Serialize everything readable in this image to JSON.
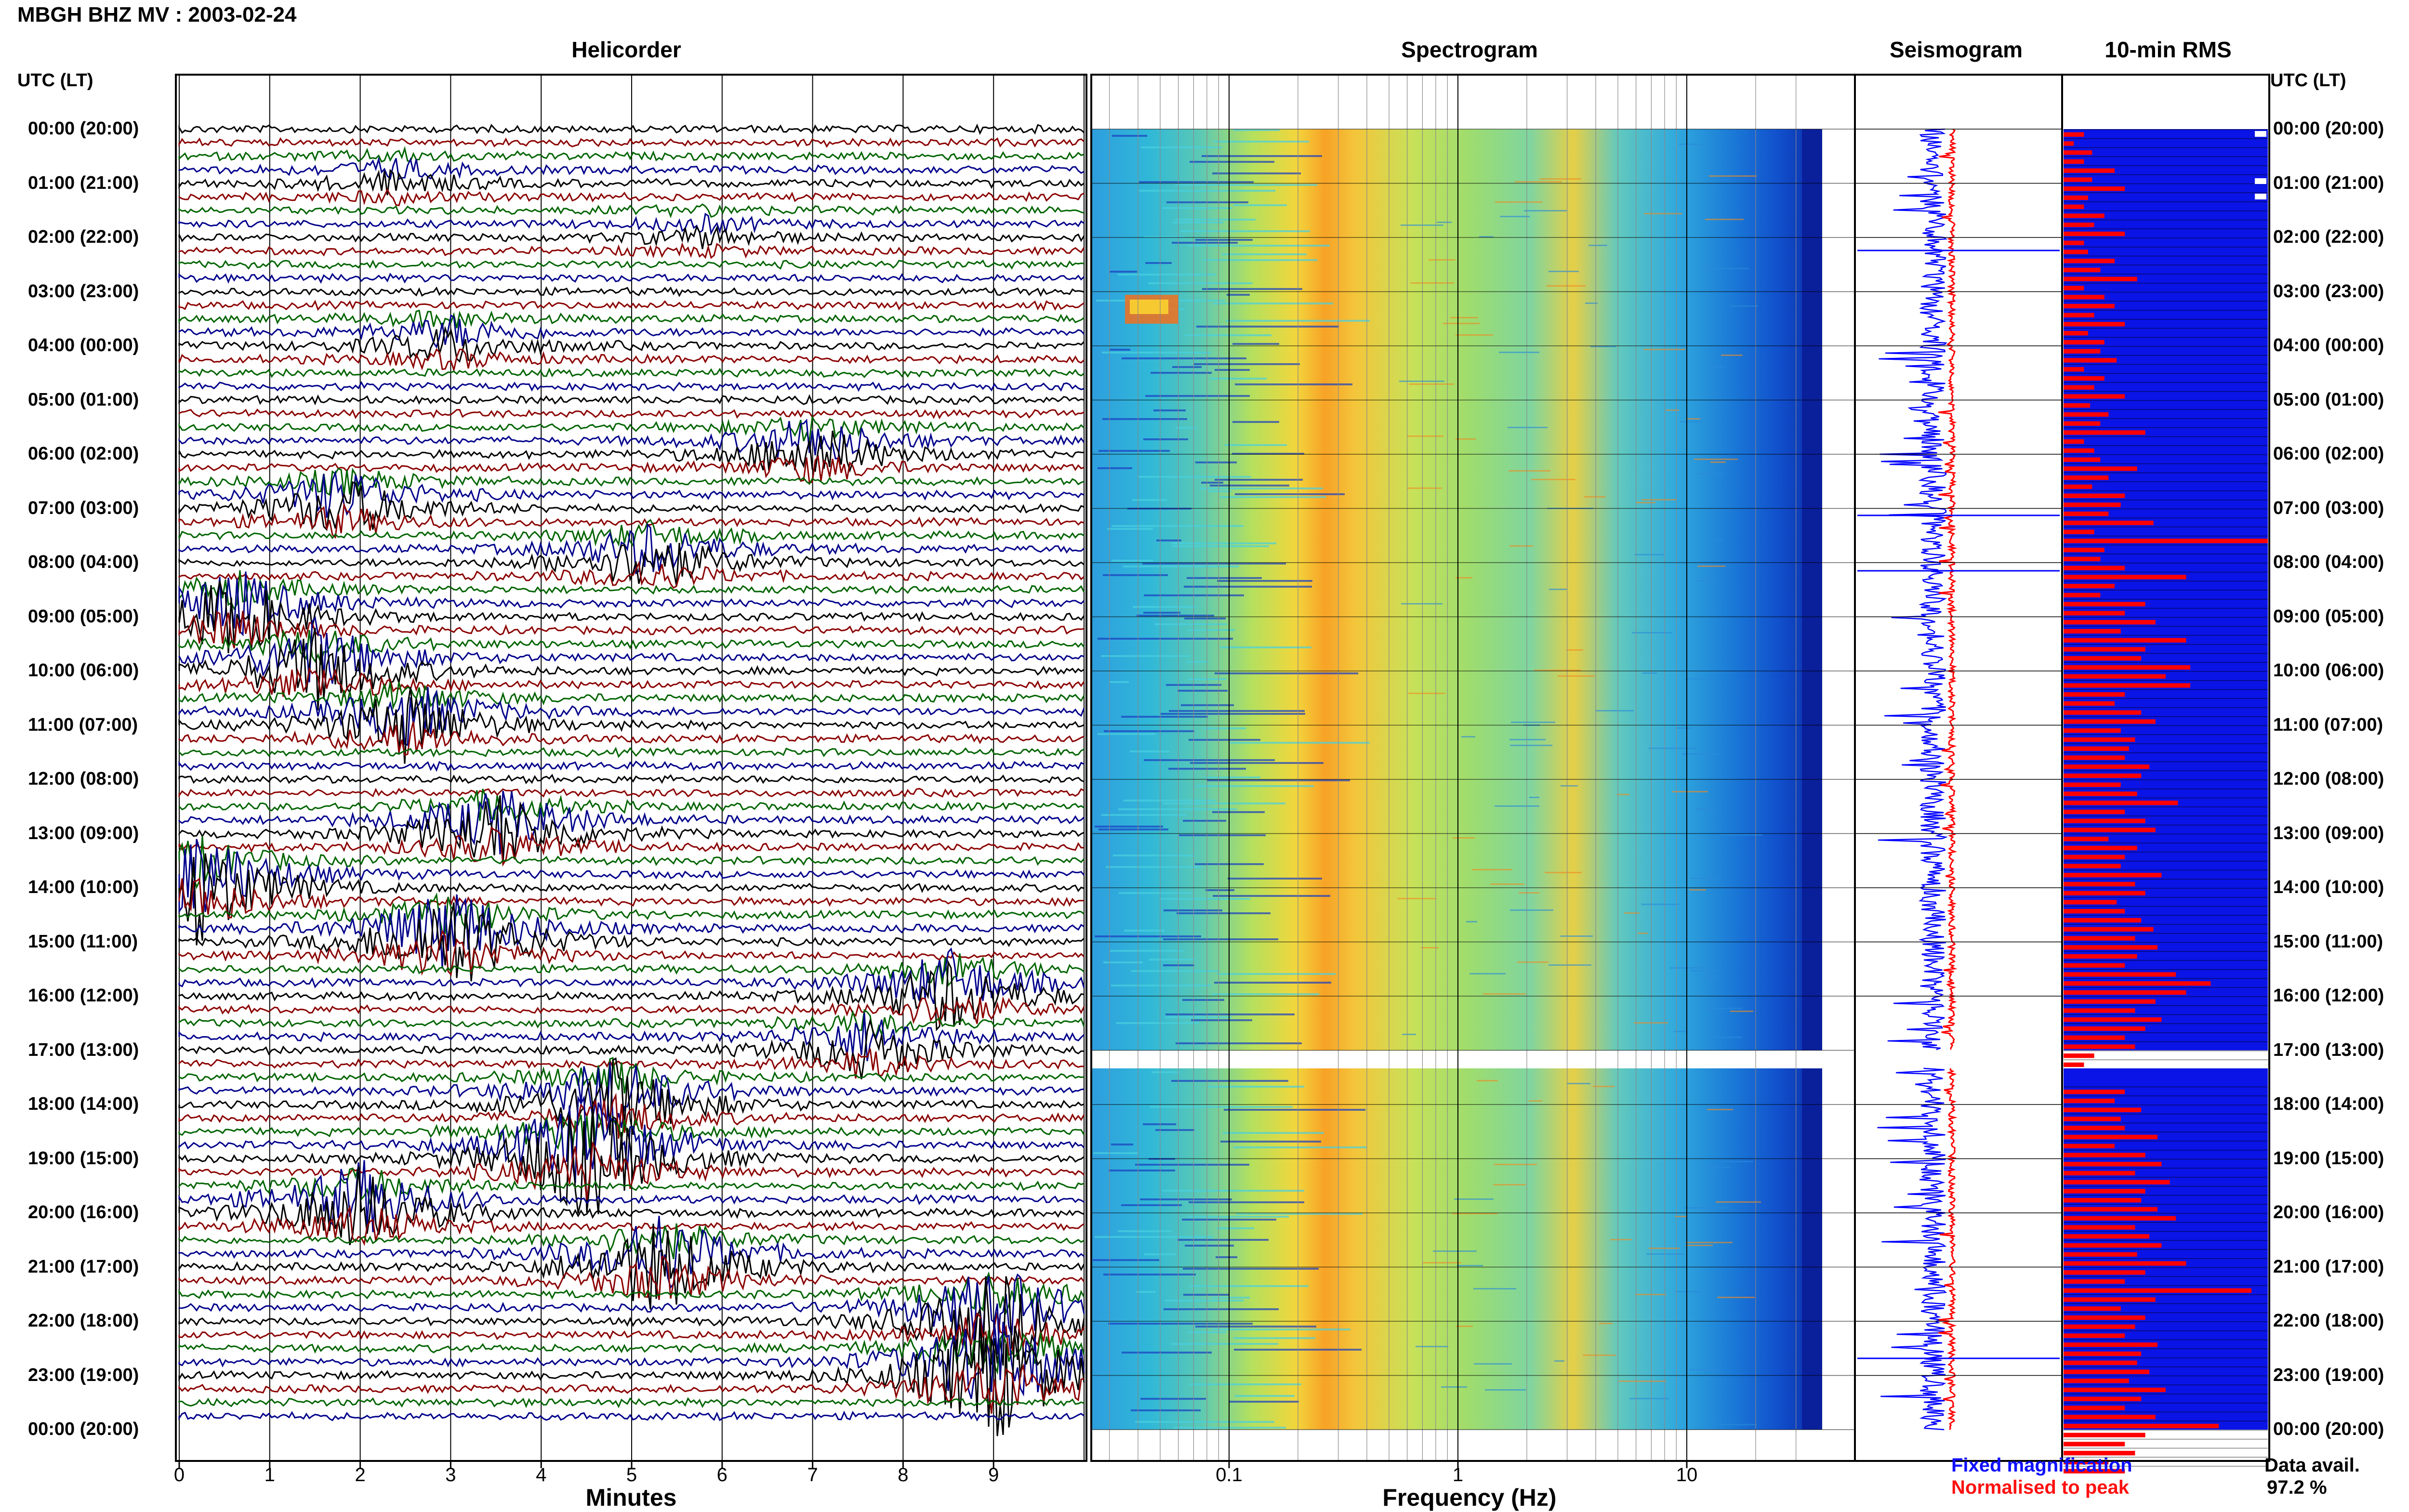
{
  "header": {
    "title": "MBGH BHZ MV : 2003-02-24"
  },
  "panels": {
    "helicorder": "Helicorder",
    "spectrogram": "Spectrogram",
    "seismogram": "Seismogram",
    "rms": "10-min RMS"
  },
  "time_axis": {
    "header": "UTC (LT)",
    "labels": [
      "00:00 (20:00)",
      "01:00 (21:00)",
      "02:00 (22:00)",
      "03:00 (23:00)",
      "04:00 (00:00)",
      "05:00 (01:00)",
      "06:00 (02:00)",
      "07:00 (03:00)",
      "08:00 (04:00)",
      "09:00 (05:00)",
      "10:00 (06:00)",
      "11:00 (07:00)",
      "12:00 (08:00)",
      "13:00 (09:00)",
      "14:00 (10:00)",
      "15:00 (11:00)",
      "16:00 (12:00)",
      "17:00 (13:00)",
      "18:00 (14:00)",
      "19:00 (15:00)",
      "20:00 (16:00)",
      "21:00 (17:00)",
      "22:00 (18:00)",
      "23:00 (19:00)",
      "00:00 (20:00)"
    ]
  },
  "helicorder_axis": {
    "title": "Minutes",
    "ticks": [
      "0",
      "1",
      "2",
      "3",
      "4",
      "5",
      "6",
      "7",
      "8",
      "9"
    ]
  },
  "spectrogram_axis": {
    "title": "Frequency (Hz)",
    "ticks": [
      "0.1",
      "1",
      "10"
    ]
  },
  "legend": {
    "fixed": "Fixed magnification",
    "normalised": "Normalised to peak",
    "fixed_color": "#1010ff",
    "normalised_color": "#ff1010"
  },
  "availability": {
    "label": "Data avail.",
    "value": "97.2 %"
  },
  "colors": {
    "trace_colors": [
      "#000000",
      "#8b0000",
      "#006400",
      "#00008b"
    ],
    "seismo_blue": "#0000ff",
    "seismo_red": "#ff0000",
    "rms_background": "#0a14e6",
    "rms_bar": "#ff0000"
  },
  "chart_data": {
    "type": "heatmap",
    "station": "MBGH BHZ MV",
    "date": "2003-02-24",
    "gap_utc": [
      "17:00",
      "17:20"
    ],
    "rms_relative": [
      0.1,
      0.05,
      0.14,
      0.1,
      0.25,
      0.14,
      0.3,
      0.12,
      0.1,
      0.2,
      0.15,
      0.3,
      0.1,
      0.12,
      0.25,
      0.18,
      0.36,
      0.1,
      0.2,
      0.25,
      0.15,
      0.3,
      0.12,
      0.2,
      0.18,
      0.26,
      0.1,
      0.2,
      0.15,
      0.3,
      0.13,
      0.22,
      0.18,
      0.4,
      0.1,
      0.15,
      0.18,
      0.36,
      0.22,
      0.14,
      0.3,
      0.28,
      0.22,
      0.44,
      0.15,
      1.0,
      0.2,
      0.18,
      0.3,
      0.6,
      0.25,
      0.18,
      0.4,
      0.3,
      0.45,
      0.28,
      0.6,
      0.4,
      0.38,
      0.62,
      0.5,
      0.62,
      0.3,
      0.25,
      0.38,
      0.45,
      0.28,
      0.35,
      0.32,
      0.3,
      0.42,
      0.38,
      0.28,
      0.36,
      0.56,
      0.3,
      0.4,
      0.45,
      0.22,
      0.36,
      0.3,
      0.28,
      0.48,
      0.35,
      0.4,
      0.26,
      0.3,
      0.38,
      0.44,
      0.35,
      0.46,
      0.36,
      0.3,
      0.55,
      0.72,
      0.6,
      0.45,
      0.35,
      0.48,
      0.4,
      0.3,
      0.35,
      0.15,
      0.1,
      0.0,
      0.0,
      0.3,
      0.25,
      0.38,
      0.28,
      0.3,
      0.46,
      0.25,
      0.4,
      0.48,
      0.35,
      0.52,
      0.4,
      0.38,
      0.46,
      0.55,
      0.35,
      0.42,
      0.48,
      0.36,
      0.6,
      0.4,
      0.3,
      0.92,
      0.45,
      0.28,
      0.4,
      0.35,
      0.3,
      0.46,
      0.38,
      0.36,
      0.42,
      0.32,
      0.5,
      0.38,
      0.3,
      0.45,
      0.76,
      0.4,
      0.3,
      0.35,
      0.22,
      0.3
    ]
  }
}
